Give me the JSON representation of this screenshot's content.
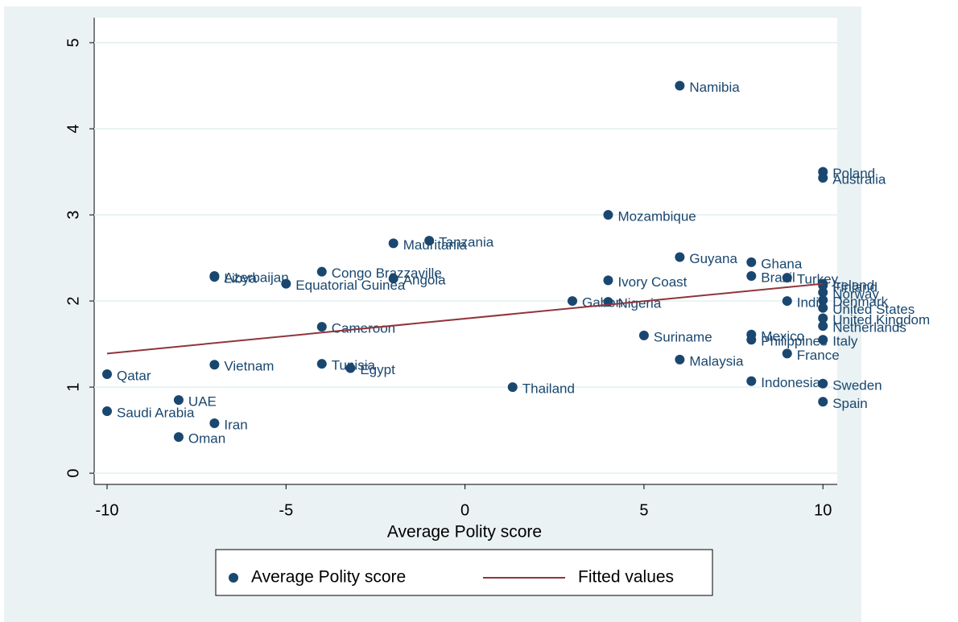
{
  "chart_data": {
    "type": "scatter",
    "x_label": "Average Polity score",
    "xlim": [
      -10.36,
      10.4
    ],
    "xticks": [
      -10,
      -5,
      0,
      5,
      10
    ],
    "ylim": [
      -0.13,
      5.29
    ],
    "yticks": [
      0,
      1,
      2,
      3,
      4,
      5
    ],
    "grid": true,
    "legend": "bottom",
    "series": [
      {
        "name": "Average Polity score",
        "type": "scatter",
        "color": "#1a476f",
        "labels": [
          "Namibia",
          "Poland",
          "Australia",
          "Mozambique",
          "Tanzania",
          "Mauritania",
          "Guyana",
          "Ghana",
          "Congo Brazzaville",
          "Azerbaijan",
          "Libya",
          "Equatorial Guinea",
          "Angola",
          "Ivory Coast",
          "Brazil",
          "Turkey",
          "Ireland",
          "Finland",
          "Norway",
          "India",
          "Denmark",
          "United States",
          "United Kingdom",
          "Netherlands",
          "Gabon",
          "Nigeria",
          "Cameroon",
          "Suriname",
          "Mexico",
          "Philippines",
          "Italy",
          "France",
          "Malaysia",
          "Vietnam",
          "Tunisia",
          "Egypt",
          "Qatar",
          "Indonesia",
          "Sweden",
          "Thailand",
          "UAE",
          "Spain",
          "Saudi Arabia",
          "Iran",
          "Oman"
        ],
        "x": [
          6,
          10,
          10,
          4,
          -1,
          -2,
          6,
          8,
          -4,
          -7,
          -7,
          -5,
          -2,
          4,
          8,
          9,
          10,
          10,
          10,
          9,
          10,
          10,
          10,
          10,
          3,
          4,
          -4,
          5,
          8,
          8,
          10,
          9,
          6,
          -7,
          -4,
          -3.2,
          -10,
          8,
          10,
          1.33,
          -8,
          10,
          -10,
          -7,
          -8
        ],
        "values": [
          4.5,
          3.5,
          3.43,
          3.0,
          2.7,
          2.67,
          2.51,
          2.45,
          2.34,
          2.29,
          2.28,
          2.2,
          2.26,
          2.24,
          2.29,
          2.27,
          2.2,
          2.18,
          2.1,
          2.0,
          2.01,
          1.92,
          1.8,
          1.71,
          2.0,
          1.99,
          1.7,
          1.6,
          1.61,
          1.55,
          1.55,
          1.39,
          1.32,
          1.26,
          1.27,
          1.22,
          1.15,
          1.07,
          1.04,
          1.0,
          0.85,
          0.83,
          0.72,
          0.58,
          0.42
        ]
      },
      {
        "name": "Fitted values",
        "type": "line",
        "color": "#90353b",
        "x": [
          -10,
          10
        ],
        "values": [
          1.39,
          2.2
        ]
      }
    ]
  }
}
